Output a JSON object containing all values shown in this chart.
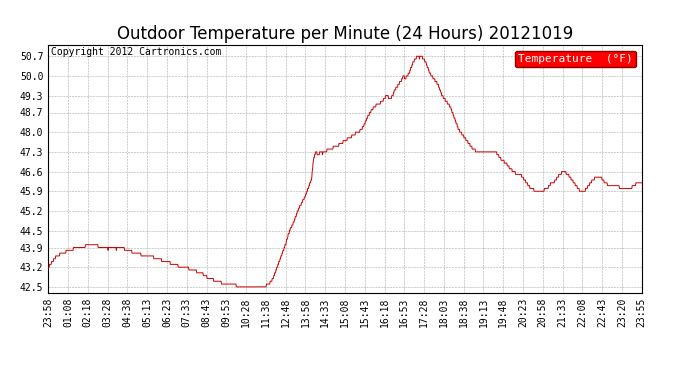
{
  "title": "Outdoor Temperature per Minute (24 Hours) 20121019",
  "copyright_text": "Copyright 2012 Cartronics.com",
  "legend_label": "Temperature  (°F)",
  "line_color": "#cc0000",
  "background_color": "#ffffff",
  "grid_color": "#aaaaaa",
  "yticks": [
    42.5,
    43.2,
    43.9,
    44.5,
    45.2,
    45.9,
    46.6,
    47.3,
    48.0,
    48.7,
    49.3,
    50.0,
    50.7
  ],
  "ylim": [
    42.3,
    51.1
  ],
  "xtick_labels": [
    "23:58",
    "01:08",
    "02:18",
    "03:28",
    "04:38",
    "05:13",
    "06:23",
    "07:33",
    "08:43",
    "09:53",
    "10:28",
    "11:38",
    "12:48",
    "13:58",
    "14:33",
    "15:08",
    "15:43",
    "16:18",
    "16:53",
    "17:28",
    "18:03",
    "18:38",
    "19:13",
    "19:48",
    "20:23",
    "20:58",
    "21:33",
    "22:08",
    "22:43",
    "23:20",
    "23:55"
  ],
  "title_fontsize": 12,
  "axis_fontsize": 7,
  "copyright_fontsize": 7
}
